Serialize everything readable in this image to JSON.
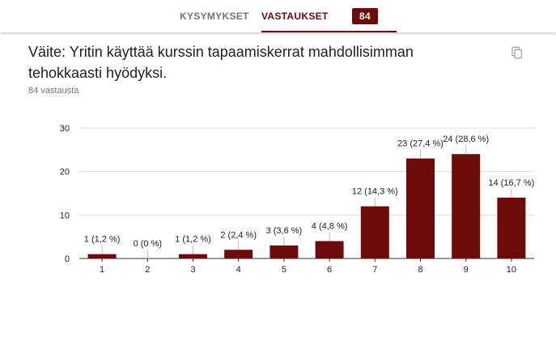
{
  "tabs": {
    "questions_label": "KYSYMYKSET",
    "responses_label": "VASTAUKSET",
    "responses_count": "84"
  },
  "question": {
    "title": "Väite: Yritin käyttää kurssin tapaamiskerrat mahdollisimman tehokkaasti hyödyksi.",
    "response_count_text": "84 vastausta"
  },
  "icons": {
    "copy": "copy-icon"
  },
  "colors": {
    "accent": "#6d0a0a",
    "bar": "#6d0a0a",
    "muted": "#757575"
  },
  "chart_data": {
    "type": "bar",
    "categories": [
      "1",
      "2",
      "3",
      "4",
      "5",
      "6",
      "7",
      "8",
      "9",
      "10"
    ],
    "values": [
      1,
      0,
      1,
      2,
      3,
      4,
      12,
      23,
      24,
      14
    ],
    "data_labels": [
      "1 (1,2 %)",
      "0 (0 %)",
      "1 (1,2 %)",
      "2 (2,4 %)",
      "3 (3,6 %)",
      "4 (4,8 %)",
      "12 (14,3 %)",
      "23 (27,4 %)",
      "24 (28,6 %)",
      "14 (16,7 %)"
    ],
    "yticks": [
      "0",
      "10",
      "20",
      "30"
    ],
    "ylim": [
      0,
      30
    ],
    "grid": true,
    "title": "",
    "xlabel": "",
    "ylabel": ""
  }
}
